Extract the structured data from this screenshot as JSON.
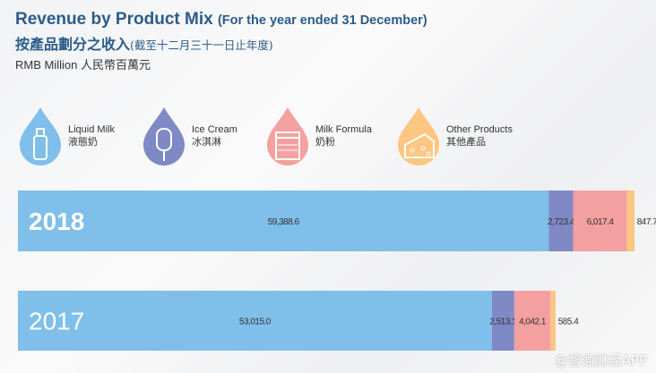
{
  "chart_data": {
    "type": "bar",
    "orientation": "horizontal-stacked",
    "title": "Revenue by Product Mix",
    "title_suffix": "(For the year ended 31 December)",
    "title_cn": "按產品劃分之收入",
    "title_cn_suffix": "(截至十二月三十一日止年度)",
    "unit": "RMB Million 人民幣百萬元",
    "categories": [
      "2018",
      "2017"
    ],
    "series": [
      {
        "name": "Liquid Milk",
        "name_cn": "液態奶",
        "color": "#7fbfea",
        "icon": "milk-bottle-icon",
        "values": [
          59388.6,
          53015.0
        ],
        "labels": [
          "59,388.6",
          "53,015.0"
        ]
      },
      {
        "name": "Ice Cream",
        "name_cn": "冰淇淋",
        "color": "#7f89c6",
        "icon": "ice-cream-icon",
        "values": [
          2723.4,
          2513.1
        ],
        "labels": [
          "2,723.4",
          "2,513.1"
        ]
      },
      {
        "name": "Milk Formula",
        "name_cn": "奶粉",
        "color": "#f5a0a0",
        "icon": "formula-can-icon",
        "values": [
          6017.4,
          4042.1
        ],
        "labels": [
          "6,017.4",
          "4,042.1"
        ]
      },
      {
        "name": "Other Products",
        "name_cn": "其他產品",
        "color": "#fdc682",
        "icon": "cheese-icon",
        "values": [
          847.7,
          585.4
        ],
        "labels": [
          "847.7",
          "585.4"
        ]
      }
    ],
    "legend_placement": "top",
    "grid": false
  },
  "watermark": "@智通财经APP"
}
